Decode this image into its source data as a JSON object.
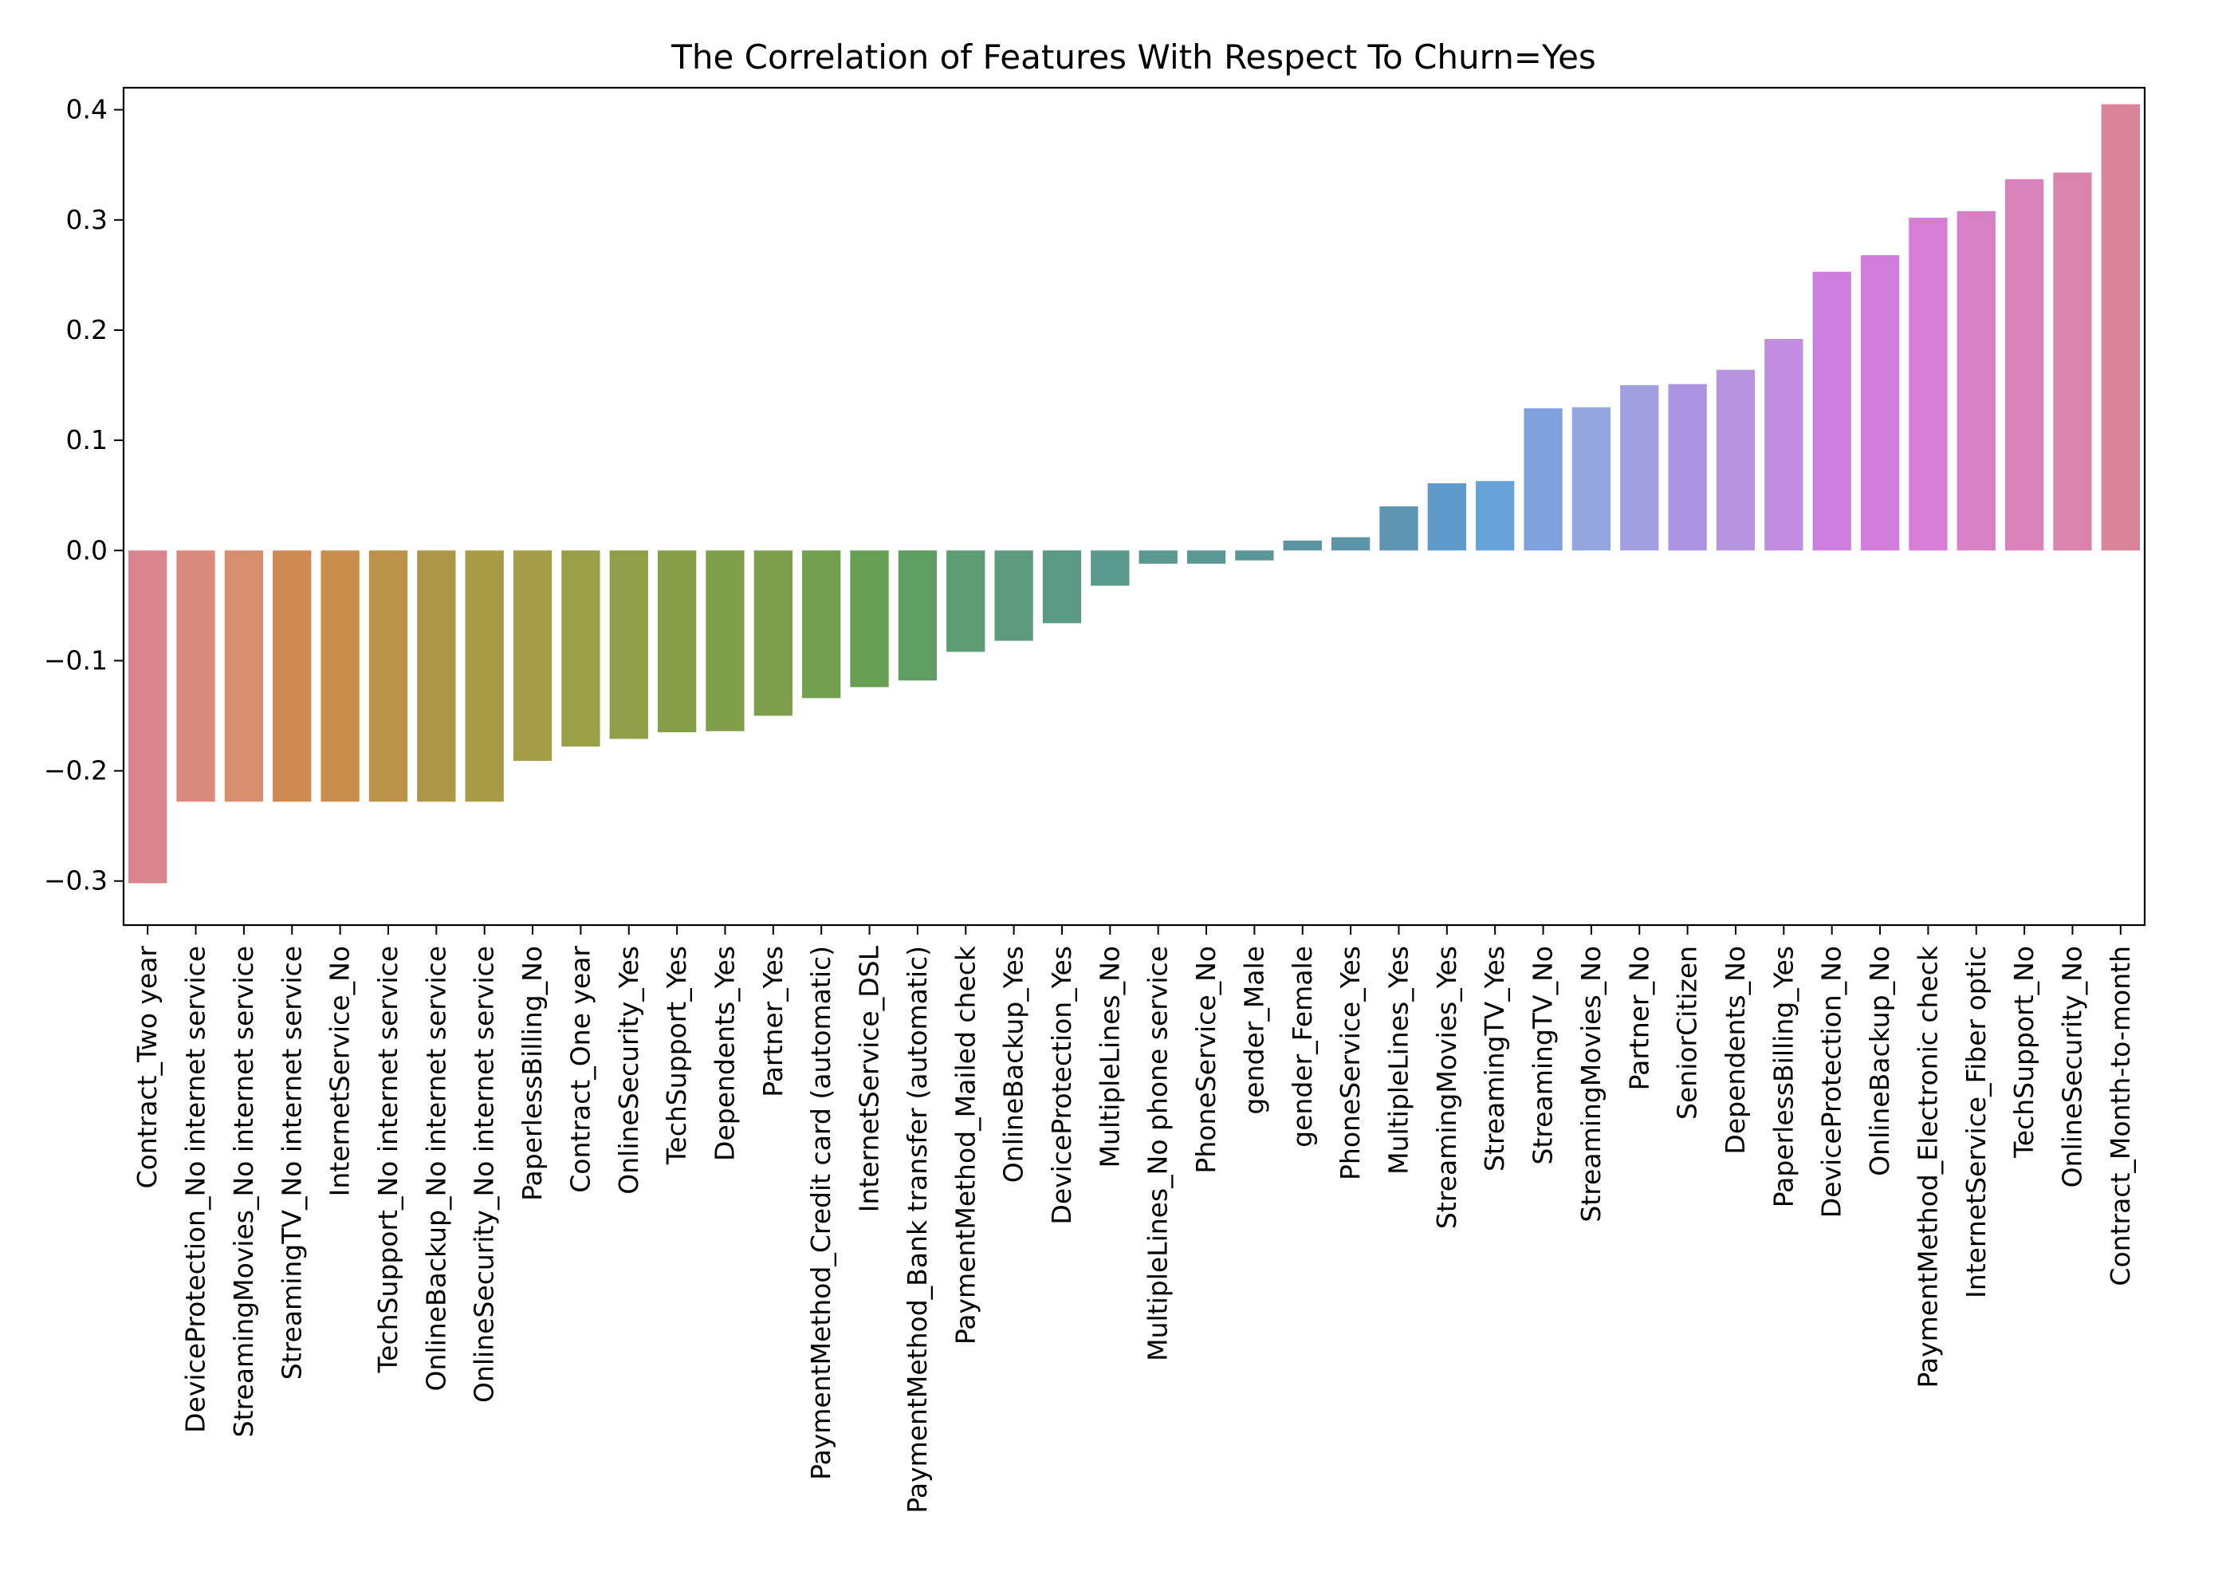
{
  "chart_data": {
    "type": "bar",
    "title": "The Correlation of Features With Respect To Churn=Yes",
    "xlabel": "",
    "ylabel": "",
    "ylim": [
      -0.34,
      0.42
    ],
    "yticks": [
      -0.3,
      -0.2,
      -0.1,
      0.0,
      0.1,
      0.2,
      0.3,
      0.4
    ],
    "ytick_labels": [
      "−0.3",
      "−0.2",
      "−0.1",
      "0.0",
      "0.1",
      "0.2",
      "0.3",
      "0.4"
    ],
    "grid": false,
    "legend": "none",
    "categories": [
      "Contract_Two year",
      "DeviceProtection_No internet service",
      "StreamingMovies_No internet service",
      "StreamingTV_No internet service",
      "InternetService_No",
      "TechSupport_No internet service",
      "OnlineBackup_No internet service",
      "OnlineSecurity_No internet service",
      "PaperlessBilling_No",
      "Contract_One year",
      "OnlineSecurity_Yes",
      "TechSupport_Yes",
      "Dependents_Yes",
      "Partner_Yes",
      "PaymentMethod_Credit card (automatic)",
      "InternetService_DSL",
      "PaymentMethod_Bank transfer (automatic)",
      "PaymentMethod_Mailed check",
      "OnlineBackup_Yes",
      "DeviceProtection_Yes",
      "MultipleLines_No",
      "MultipleLines_No phone service",
      "PhoneService_No",
      "gender_Male",
      "gender_Female",
      "PhoneService_Yes",
      "MultipleLines_Yes",
      "StreamingMovies_Yes",
      "StreamingTV_Yes",
      "StreamingTV_No",
      "StreamingMovies_No",
      "Partner_No",
      "SeniorCitizen",
      "Dependents_No",
      "PaperlessBilling_Yes",
      "DeviceProtection_No",
      "OnlineBackup_No",
      "PaymentMethod_Electronic check",
      "InternetService_Fiber optic",
      "TechSupport_No",
      "OnlineSecurity_No",
      "Contract_Month-to-month"
    ],
    "values": [
      -0.302,
      -0.228,
      -0.228,
      -0.228,
      -0.228,
      -0.228,
      -0.228,
      -0.228,
      -0.191,
      -0.178,
      -0.171,
      -0.165,
      -0.164,
      -0.15,
      -0.134,
      -0.124,
      -0.118,
      -0.092,
      -0.082,
      -0.066,
      -0.032,
      -0.012,
      -0.012,
      -0.009,
      0.009,
      0.012,
      0.04,
      0.061,
      0.063,
      0.129,
      0.13,
      0.15,
      0.151,
      0.164,
      0.192,
      0.253,
      0.268,
      0.302,
      0.308,
      0.337,
      0.343,
      0.405
    ],
    "colors": [
      "#d9848f",
      "#d98a7c",
      "#d78f6f",
      "#cf8a52",
      "#c98e4b",
      "#bb9248",
      "#ae9647",
      "#a89b46",
      "#a29d46",
      "#989f46",
      "#8f9e47",
      "#87a048",
      "#809f49",
      "#7c9e4b",
      "#73a04e",
      "#66a055",
      "#5f9e62",
      "#5d9d72",
      "#5c9b7d",
      "#5a9a85",
      "#5a9a8c",
      "#5a9890",
      "#5b9793",
      "#5b9699",
      "#5c95a2",
      "#5c95a8",
      "#5d95b3",
      "#5e9bca",
      "#65a2d8",
      "#7fa1dd",
      "#93a6e0",
      "#a0a0e1",
      "#ab95e0",
      "#b795de",
      "#c18de0",
      "#ce7fdd",
      "#d27ddb",
      "#d67ed4",
      "#d680c6",
      "#d982bc",
      "#d983ad",
      "#d98499"
    ]
  }
}
